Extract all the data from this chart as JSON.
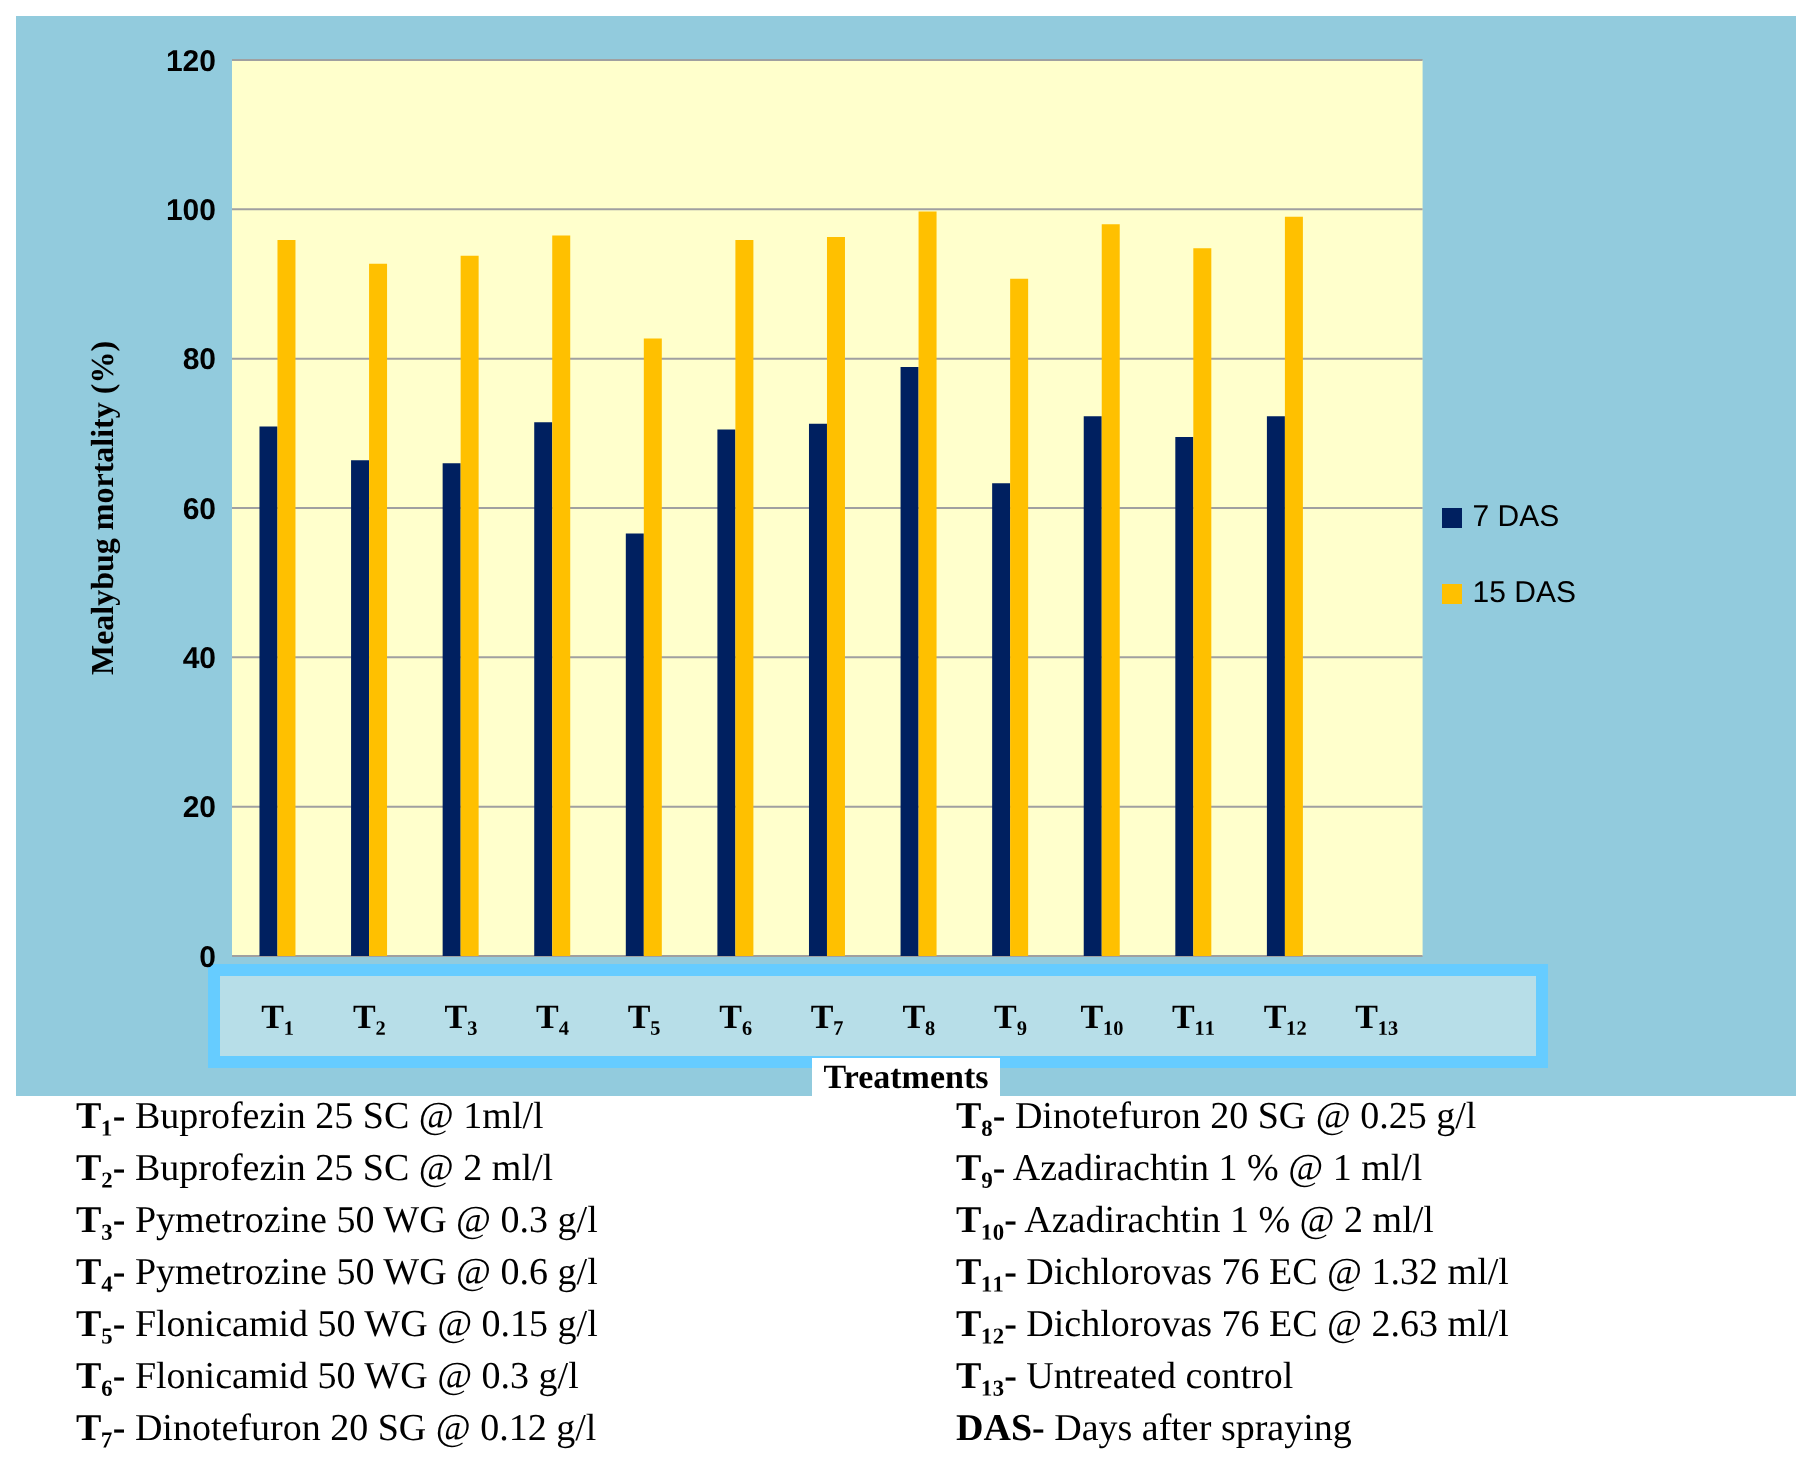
{
  "chart_data": {
    "type": "bar",
    "xlabel": "Treatments",
    "ylabel": "Mealybug mortality (%)",
    "categories": [
      "T₁",
      "T₂",
      "T₃",
      "T₄",
      "T₅",
      "T₆",
      "T₇",
      "T₈",
      "T₉",
      "T₁₀",
      "T₁₁",
      "T₁₂",
      "T₁₃"
    ],
    "series": [
      {
        "name": "7 DAS",
        "color": "#002060",
        "values": [
          70.9,
          66.4,
          66.0,
          71.5,
          56.6,
          70.5,
          71.3,
          78.9,
          63.3,
          72.3,
          69.5,
          72.3,
          null
        ]
      },
      {
        "name": "15 DAS",
        "color": "#ffc000",
        "values": [
          95.9,
          92.7,
          93.8,
          96.5,
          82.7,
          95.9,
          96.3,
          99.7,
          90.7,
          98.0,
          94.8,
          99.0,
          null
        ]
      }
    ],
    "ylim": [
      0,
      120
    ],
    "yticks": [
      0,
      20,
      40,
      60,
      80,
      100,
      120
    ],
    "grid": "y",
    "legend": "right",
    "annotations": [
      "T₁- Buprofezin 25 SC @ 1ml/l",
      "T₂- Buprofezin 25 SC @ 2 ml/l",
      "T₃- Pymetrozine 50 WG @ 0.3 g/l",
      "T₄- Pymetrozine 50 WG @ 0.6 g/l",
      "T₅- Flonicamid 50 WG @ 0.15 g/l",
      "T₆- Flonicamid 50 WG @ 0.3 g/l",
      "T₇- Dinotefuron 20 SG @ 0.12 g/l",
      "T₈- Dinotefuron 20 SG @ 0.25 g/l",
      "T₉- Azadirachtin 1 % @ 1 ml/l",
      "T₁₀- Azadirachtin 1 % @ 2 ml/l",
      "T₁₁- Dichlorovas 76 EC @ 1.32 ml/l",
      "T₁₂- Dichlorovas 76 EC @ 2.63 ml/l",
      "T₁₃- Untreated control",
      "DAS- Days after spraying"
    ]
  }
}
